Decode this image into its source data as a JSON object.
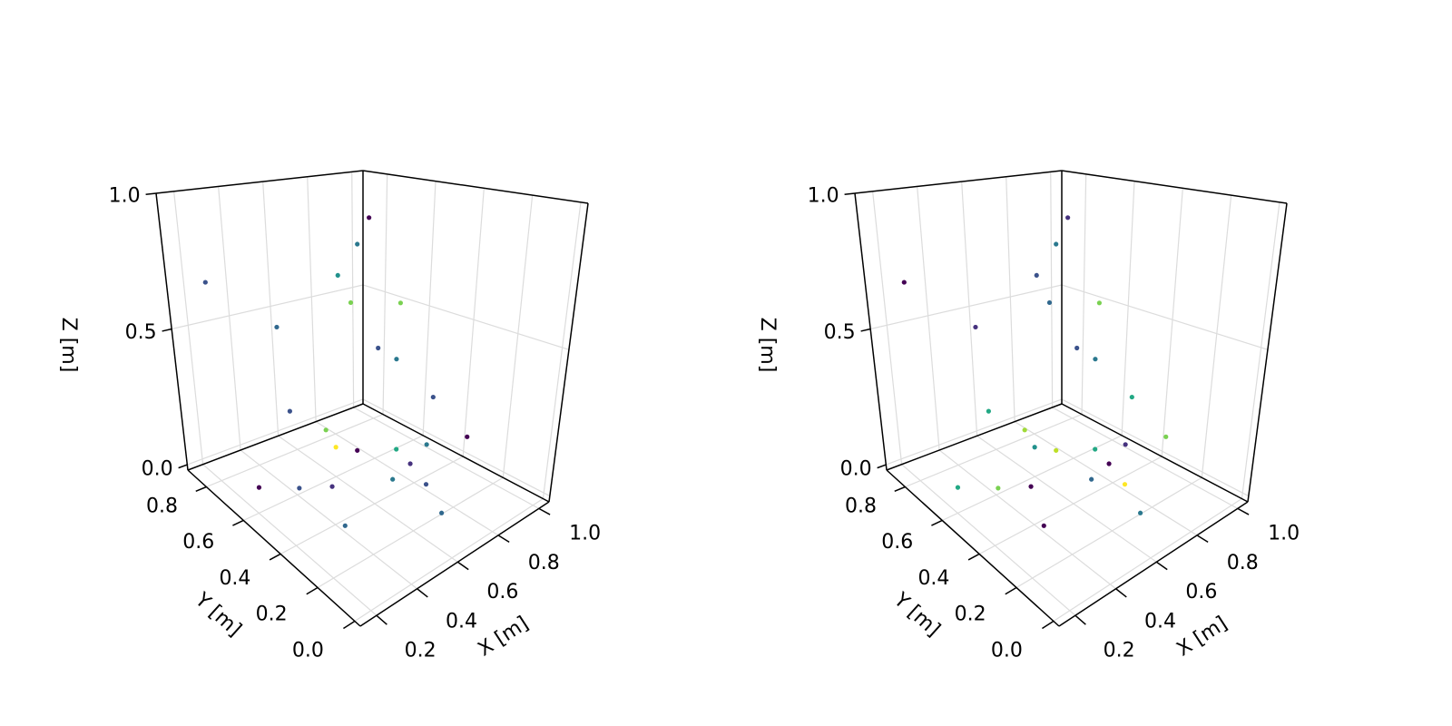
{
  "chart_data": [
    {
      "type": "scatter3d",
      "xlabel": "X [m]",
      "ylabel": "Y [m]",
      "zlabel": "Z [m]",
      "x": [
        0.72,
        0.7,
        0.61,
        0.65,
        0.78,
        0.17,
        0.36,
        0.7,
        0.77,
        0.81,
        0.48,
        0.7,
        0.71,
        0.76,
        0.88,
        0.92,
        0.92,
        0.85,
        0.28,
        0.41,
        0.52,
        0.73,
        0.8,
        0.72,
        0.4
      ],
      "y": [
        0.57,
        0.6,
        0.6,
        0.58,
        0.48,
        0.77,
        0.64,
        0.5,
        0.48,
        0.34,
        0.71,
        0.75,
        0.71,
        0.65,
        0.57,
        0.46,
        0.27,
        0.47,
        0.68,
        0.6,
        0.54,
        0.44,
        0.34,
        0.18,
        0.35
      ],
      "z": [
        0.9,
        0.8,
        0.7,
        0.6,
        0.6,
        0.7,
        0.55,
        0.45,
        0.4,
        0.3,
        0.2,
        0.05,
        0,
        0,
        0,
        0.05,
        0.15,
        0,
        0,
        0,
        0,
        0,
        0,
        0,
        0
      ],
      "colors": [
        "#440154",
        "#2a788e",
        "#21918c",
        "#7ad151",
        "#7ad151",
        "#3b528b",
        "#31688e",
        "#3b528b",
        "#2a788e",
        "#3b528b",
        "#3b528b",
        "#7ad151",
        "#fde725",
        "#440154",
        "#22a884",
        "#2a788e",
        "#440154",
        "#46327e",
        "#440154",
        "#3b528b",
        "#46327e",
        "#2a788e",
        "#3b528b",
        "#31688e",
        "#31688e"
      ],
      "xlim": [
        0.12,
        1.05
      ],
      "ylim": [
        -0.03,
        0.9
      ],
      "zlim": [
        -0.02,
        1.0
      ],
      "xticks": [
        0.2,
        0.4,
        0.6,
        0.8,
        {
          "value": 1,
          "label": "1.0"
        }
      ],
      "yticks": [
        {
          "value": 0,
          "label": "0.0"
        },
        0.2,
        0.4,
        0.6,
        0.8
      ],
      "zticks": [
        {
          "value": 0,
          "label": "0.0"
        },
        0.5,
        {
          "value": 1,
          "label": "1.0"
        }
      ],
      "grid": true
    },
    {
      "type": "scatter3d",
      "xlabel": "X [m]",
      "ylabel": "Y [m]",
      "zlabel": "Z [m]",
      "x": [
        0.72,
        0.7,
        0.61,
        0.65,
        0.78,
        0.17,
        0.36,
        0.7,
        0.77,
        0.81,
        0.48,
        0.7,
        0.71,
        0.76,
        0.88,
        0.92,
        0.92,
        0.85,
        0.28,
        0.41,
        0.52,
        0.73,
        0.8,
        0.72,
        0.4
      ],
      "y": [
        0.57,
        0.6,
        0.6,
        0.58,
        0.48,
        0.77,
        0.64,
        0.5,
        0.48,
        0.34,
        0.71,
        0.75,
        0.71,
        0.65,
        0.57,
        0.46,
        0.27,
        0.47,
        0.68,
        0.6,
        0.54,
        0.44,
        0.34,
        0.18,
        0.35
      ],
      "z": [
        0.9,
        0.8,
        0.7,
        0.6,
        0.6,
        0.7,
        0.55,
        0.45,
        0.4,
        0.3,
        0.2,
        0.05,
        0,
        0,
        0,
        0.05,
        0.15,
        0,
        0,
        0,
        0,
        0,
        0,
        0,
        0
      ],
      "colors": [
        "#46327e",
        "#2a788e",
        "#3b528b",
        "#31688e",
        "#7ad151",
        "#440154",
        "#46327e",
        "#3b528b",
        "#2a788e",
        "#22a884",
        "#22a884",
        "#a0da39",
        "#21918c",
        "#bddf26",
        "#22a884",
        "#46327e",
        "#7ad151",
        "#440154",
        "#22a884",
        "#7ad151",
        "#440154",
        "#31688e",
        "#fde725",
        "#2a788e",
        "#440154"
      ],
      "xlim": [
        0.12,
        1.05
      ],
      "ylim": [
        -0.03,
        0.9
      ],
      "zlim": [
        -0.02,
        1.0
      ],
      "xticks": [
        0.2,
        0.4,
        0.6,
        0.8,
        {
          "value": 1,
          "label": "1.0"
        }
      ],
      "yticks": [
        {
          "value": 0,
          "label": "0.0"
        },
        0.2,
        0.4,
        0.6,
        0.8
      ],
      "zticks": [
        {
          "value": 0,
          "label": "0.0"
        },
        0.5,
        {
          "value": 1,
          "label": "1.0"
        }
      ],
      "grid": true
    }
  ]
}
